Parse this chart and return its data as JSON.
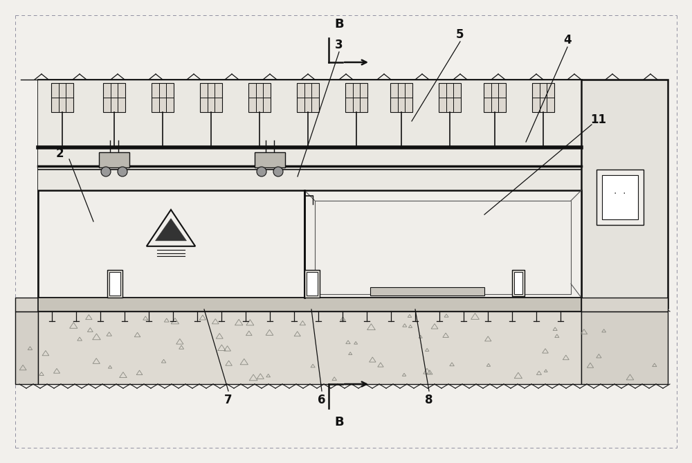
{
  "bg_color": "#f2f0ec",
  "lc": "#111111",
  "fig_w": 10.0,
  "fig_h": 6.69,
  "dpi": 100,
  "labels": [
    "B",
    "B",
    "2",
    "3",
    "4",
    "5",
    "6",
    "7",
    "8",
    "11"
  ]
}
